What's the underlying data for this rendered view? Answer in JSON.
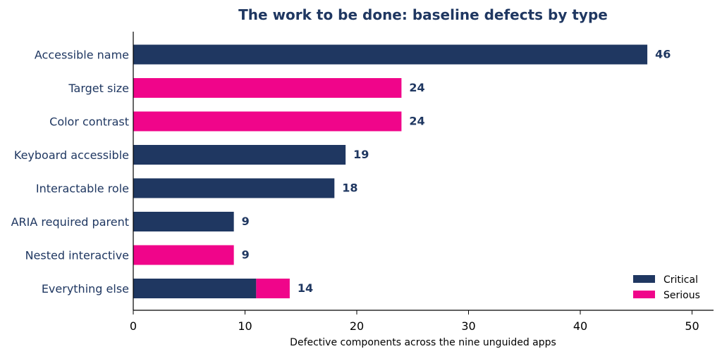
{
  "chart_data": {
    "type": "bar",
    "orientation": "horizontal",
    "stacked": true,
    "title": "The work to be done: baseline defects by type",
    "xlabel": "Defective components across the nine unguided apps",
    "ylabel": "",
    "xlim": [
      0,
      52
    ],
    "xticks": [
      0,
      10,
      20,
      30,
      40,
      50
    ],
    "grid": false,
    "legend_position": "bottom-right",
    "categories": [
      "Accessible name",
      "Target size",
      "Color contrast",
      "Keyboard accessible",
      "Interactable role",
      "ARIA required parent",
      "Nested interactive",
      "Everything else"
    ],
    "series": [
      {
        "name": "Critical",
        "color": "#1f3761",
        "values": [
          46,
          0,
          0,
          19,
          18,
          9,
          0,
          11
        ]
      },
      {
        "name": "Serious",
        "color": "#f0058a",
        "values": [
          0,
          24,
          24,
          0,
          0,
          0,
          9,
          3
        ]
      }
    ],
    "totals": [
      46,
      24,
      24,
      19,
      18,
      9,
      9,
      14
    ]
  }
}
